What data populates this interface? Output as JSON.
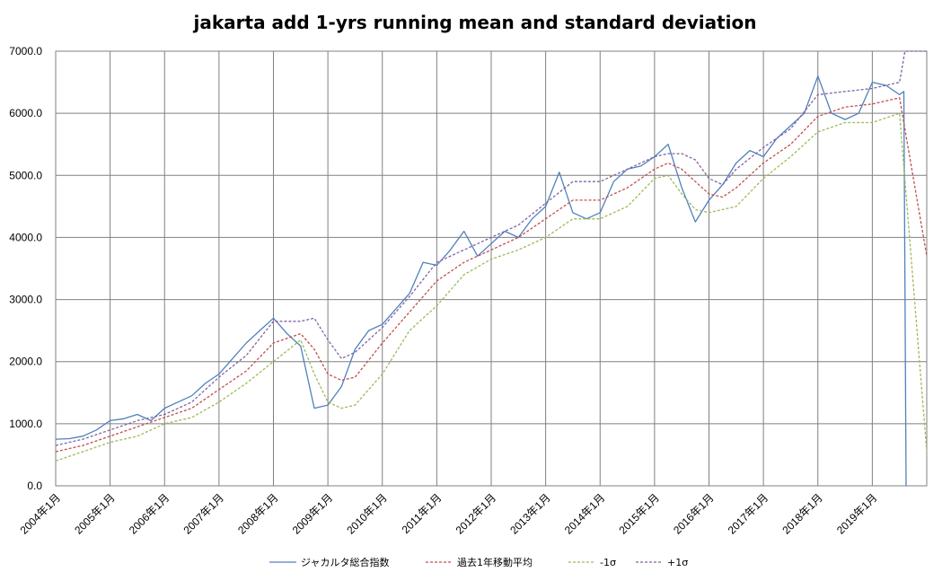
{
  "chart_data": {
    "type": "line",
    "title": "jakarta add 1-yrs running mean and standard deviation",
    "xlabel": "",
    "ylabel": "",
    "ylim": [
      0,
      7000
    ],
    "y_ticks": [
      "0.0",
      "1000.0",
      "2000.0",
      "3000.0",
      "4000.0",
      "5000.0",
      "6000.0",
      "7000.0"
    ],
    "x_ticks": [
      "2004年1月",
      "2005年1月",
      "2006年1月",
      "2007年1月",
      "2008年1月",
      "2009年1月",
      "2010年1月",
      "2011年1月",
      "2012年1月",
      "2013年1月",
      "2014年1月",
      "2015年1月",
      "2016年1月",
      "2017年1月",
      "2018年1月",
      "2019年1月"
    ],
    "grid": true,
    "legend_position": "bottom",
    "colors": {
      "index": "#4F81BD",
      "mean": "#C0504D",
      "minus": "#9BBB59",
      "plus": "#8064A2",
      "grid": "#808080"
    },
    "series": [
      {
        "name": "ジャカルタ総合指数",
        "style": "solid",
        "points": [
          [
            2004,
            750
          ],
          [
            2004.25,
            760
          ],
          [
            2004.5,
            800
          ],
          [
            2004.75,
            900
          ],
          [
            2005,
            1050
          ],
          [
            2005.25,
            1080
          ],
          [
            2005.5,
            1150
          ],
          [
            2005.75,
            1050
          ],
          [
            2006,
            1250
          ],
          [
            2006.25,
            1350
          ],
          [
            2006.5,
            1450
          ],
          [
            2006.75,
            1650
          ],
          [
            2007,
            1800
          ],
          [
            2007.25,
            2050
          ],
          [
            2007.5,
            2300
          ],
          [
            2007.75,
            2500
          ],
          [
            2008,
            2700
          ],
          [
            2008.25,
            2450
          ],
          [
            2008.5,
            2250
          ],
          [
            2008.75,
            1250
          ],
          [
            2009,
            1300
          ],
          [
            2009.25,
            1600
          ],
          [
            2009.5,
            2200
          ],
          [
            2009.75,
            2500
          ],
          [
            2010,
            2600
          ],
          [
            2010.25,
            2850
          ],
          [
            2010.5,
            3100
          ],
          [
            2010.75,
            3600
          ],
          [
            2011,
            3550
          ],
          [
            2011.25,
            3800
          ],
          [
            2011.5,
            4100
          ],
          [
            2011.75,
            3700
          ],
          [
            2012,
            3900
          ],
          [
            2012.25,
            4100
          ],
          [
            2012.5,
            4000
          ],
          [
            2012.75,
            4300
          ],
          [
            2013,
            4500
          ],
          [
            2013.25,
            5050
          ],
          [
            2013.5,
            4400
          ],
          [
            2013.75,
            4300
          ],
          [
            2014,
            4400
          ],
          [
            2014.25,
            4900
          ],
          [
            2014.5,
            5100
          ],
          [
            2014.75,
            5150
          ],
          [
            2015,
            5300
          ],
          [
            2015.25,
            5500
          ],
          [
            2015.5,
            4800
          ],
          [
            2015.75,
            4250
          ],
          [
            2016,
            4600
          ],
          [
            2016.25,
            4850
          ],
          [
            2016.5,
            5200
          ],
          [
            2016.75,
            5400
          ],
          [
            2017,
            5300
          ],
          [
            2017.25,
            5600
          ],
          [
            2017.5,
            5800
          ],
          [
            2017.75,
            6000
          ],
          [
            2018,
            6600
          ],
          [
            2018.25,
            6000
          ],
          [
            2018.5,
            5900
          ],
          [
            2018.75,
            6000
          ],
          [
            2019,
            6500
          ],
          [
            2019.25,
            6450
          ],
          [
            2019.5,
            6300
          ],
          [
            2019.58,
            6350
          ],
          [
            2019.62,
            0
          ]
        ]
      },
      {
        "name": "過去1年移動平均",
        "style": "dashed",
        "points": [
          [
            2004,
            550
          ],
          [
            2004.5,
            650
          ],
          [
            2005,
            800
          ],
          [
            2005.5,
            950
          ],
          [
            2006,
            1100
          ],
          [
            2006.5,
            1250
          ],
          [
            2007,
            1550
          ],
          [
            2007.5,
            1850
          ],
          [
            2008,
            2300
          ],
          [
            2008.5,
            2450
          ],
          [
            2008.75,
            2200
          ],
          [
            2009,
            1800
          ],
          [
            2009.25,
            1700
          ],
          [
            2009.5,
            1750
          ],
          [
            2010,
            2300
          ],
          [
            2010.5,
            2800
          ],
          [
            2011,
            3300
          ],
          [
            2011.5,
            3600
          ],
          [
            2012,
            3800
          ],
          [
            2012.5,
            4000
          ],
          [
            2013,
            4300
          ],
          [
            2013.5,
            4600
          ],
          [
            2014,
            4600
          ],
          [
            2014.5,
            4800
          ],
          [
            2015,
            5100
          ],
          [
            2015.25,
            5200
          ],
          [
            2015.5,
            5100
          ],
          [
            2015.75,
            4900
          ],
          [
            2016,
            4700
          ],
          [
            2016.25,
            4650
          ],
          [
            2016.5,
            4800
          ],
          [
            2017,
            5200
          ],
          [
            2017.5,
            5500
          ],
          [
            2018,
            5950
          ],
          [
            2018.5,
            6100
          ],
          [
            2019,
            6150
          ],
          [
            2019.5,
            6250
          ],
          [
            2020,
            3700
          ]
        ]
      },
      {
        "name": "-1σ",
        "style": "dashed",
        "points": [
          [
            2004,
            400
          ],
          [
            2004.5,
            550
          ],
          [
            2005,
            700
          ],
          [
            2005.5,
            800
          ],
          [
            2006,
            1000
          ],
          [
            2006.5,
            1100
          ],
          [
            2007,
            1350
          ],
          [
            2007.5,
            1650
          ],
          [
            2008,
            2000
          ],
          [
            2008.5,
            2350
          ],
          [
            2008.75,
            1800
          ],
          [
            2009,
            1350
          ],
          [
            2009.25,
            1250
          ],
          [
            2009.5,
            1300
          ],
          [
            2010,
            1800
          ],
          [
            2010.5,
            2500
          ],
          [
            2011,
            2900
          ],
          [
            2011.5,
            3400
          ],
          [
            2012,
            3650
          ],
          [
            2012.5,
            3800
          ],
          [
            2013,
            4000
          ],
          [
            2013.5,
            4300
          ],
          [
            2014,
            4300
          ],
          [
            2014.5,
            4500
          ],
          [
            2015,
            4950
          ],
          [
            2015.25,
            5000
          ],
          [
            2015.5,
            4700
          ],
          [
            2015.75,
            4450
          ],
          [
            2016,
            4400
          ],
          [
            2016.5,
            4500
          ],
          [
            2017,
            4950
          ],
          [
            2017.5,
            5300
          ],
          [
            2018,
            5700
          ],
          [
            2018.5,
            5850
          ],
          [
            2019,
            5850
          ],
          [
            2019.5,
            6000
          ],
          [
            2020,
            550
          ]
        ]
      },
      {
        "name": "+1σ",
        "style": "dashed",
        "points": [
          [
            2004,
            650
          ],
          [
            2004.5,
            750
          ],
          [
            2005,
            900
          ],
          [
            2005.5,
            1050
          ],
          [
            2006,
            1150
          ],
          [
            2006.5,
            1350
          ],
          [
            2007,
            1750
          ],
          [
            2007.5,
            2100
          ],
          [
            2008,
            2650
          ],
          [
            2008.5,
            2650
          ],
          [
            2008.75,
            2700
          ],
          [
            2009,
            2350
          ],
          [
            2009.25,
            2050
          ],
          [
            2009.5,
            2150
          ],
          [
            2010,
            2550
          ],
          [
            2010.5,
            3050
          ],
          [
            2011,
            3600
          ],
          [
            2011.5,
            3800
          ],
          [
            2012,
            4000
          ],
          [
            2012.5,
            4200
          ],
          [
            2013,
            4550
          ],
          [
            2013.5,
            4900
          ],
          [
            2014,
            4900
          ],
          [
            2014.5,
            5100
          ],
          [
            2015,
            5300
          ],
          [
            2015.25,
            5350
          ],
          [
            2015.5,
            5350
          ],
          [
            2015.75,
            5250
          ],
          [
            2016,
            4950
          ],
          [
            2016.25,
            4850
          ],
          [
            2016.5,
            5100
          ],
          [
            2017,
            5450
          ],
          [
            2017.5,
            5750
          ],
          [
            2018,
            6300
          ],
          [
            2018.5,
            6350
          ],
          [
            2019,
            6400
          ],
          [
            2019.5,
            6500
          ],
          [
            2019.6,
            7000
          ],
          [
            2020,
            7000
          ]
        ]
      }
    ]
  }
}
